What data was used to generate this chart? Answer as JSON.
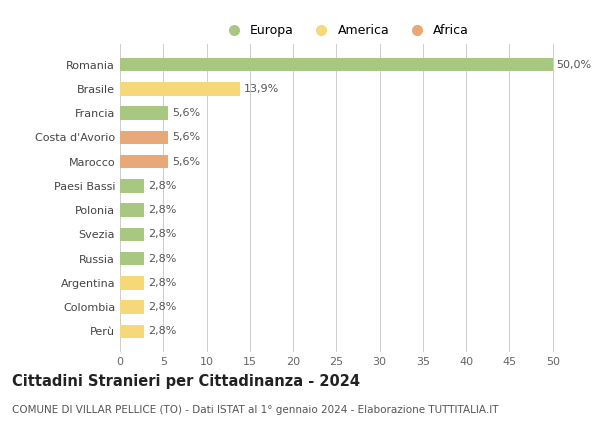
{
  "categories": [
    "Romania",
    "Brasile",
    "Francia",
    "Costa d'Avorio",
    "Marocco",
    "Paesi Bassi",
    "Polonia",
    "Svezia",
    "Russia",
    "Argentina",
    "Colombia",
    "Perù"
  ],
  "values": [
    50.0,
    13.9,
    5.6,
    5.6,
    5.6,
    2.8,
    2.8,
    2.8,
    2.8,
    2.8,
    2.8,
    2.8
  ],
  "labels": [
    "50,0%",
    "13,9%",
    "5,6%",
    "5,6%",
    "5,6%",
    "2,8%",
    "2,8%",
    "2,8%",
    "2,8%",
    "2,8%",
    "2,8%",
    "2,8%"
  ],
  "continent": [
    "Europa",
    "America",
    "Europa",
    "Africa",
    "Africa",
    "Europa",
    "Europa",
    "Europa",
    "Europa",
    "America",
    "America",
    "America"
  ],
  "colors": {
    "Europa": "#a8c882",
    "America": "#f5d87a",
    "Africa": "#e8a878"
  },
  "xlim": [
    0,
    52
  ],
  "xticks": [
    0,
    5,
    10,
    15,
    20,
    25,
    30,
    35,
    40,
    45,
    50
  ],
  "title": "Cittadini Stranieri per Cittadinanza - 2024",
  "subtitle": "COMUNE DI VILLAR PELLICE (TO) - Dati ISTAT al 1° gennaio 2024 - Elaborazione TUTTITALIA.IT",
  "background_color": "#ffffff",
  "grid_color": "#cccccc",
  "title_fontsize": 10.5,
  "subtitle_fontsize": 7.5,
  "label_fontsize": 8,
  "tick_fontsize": 8,
  "legend_fontsize": 9
}
